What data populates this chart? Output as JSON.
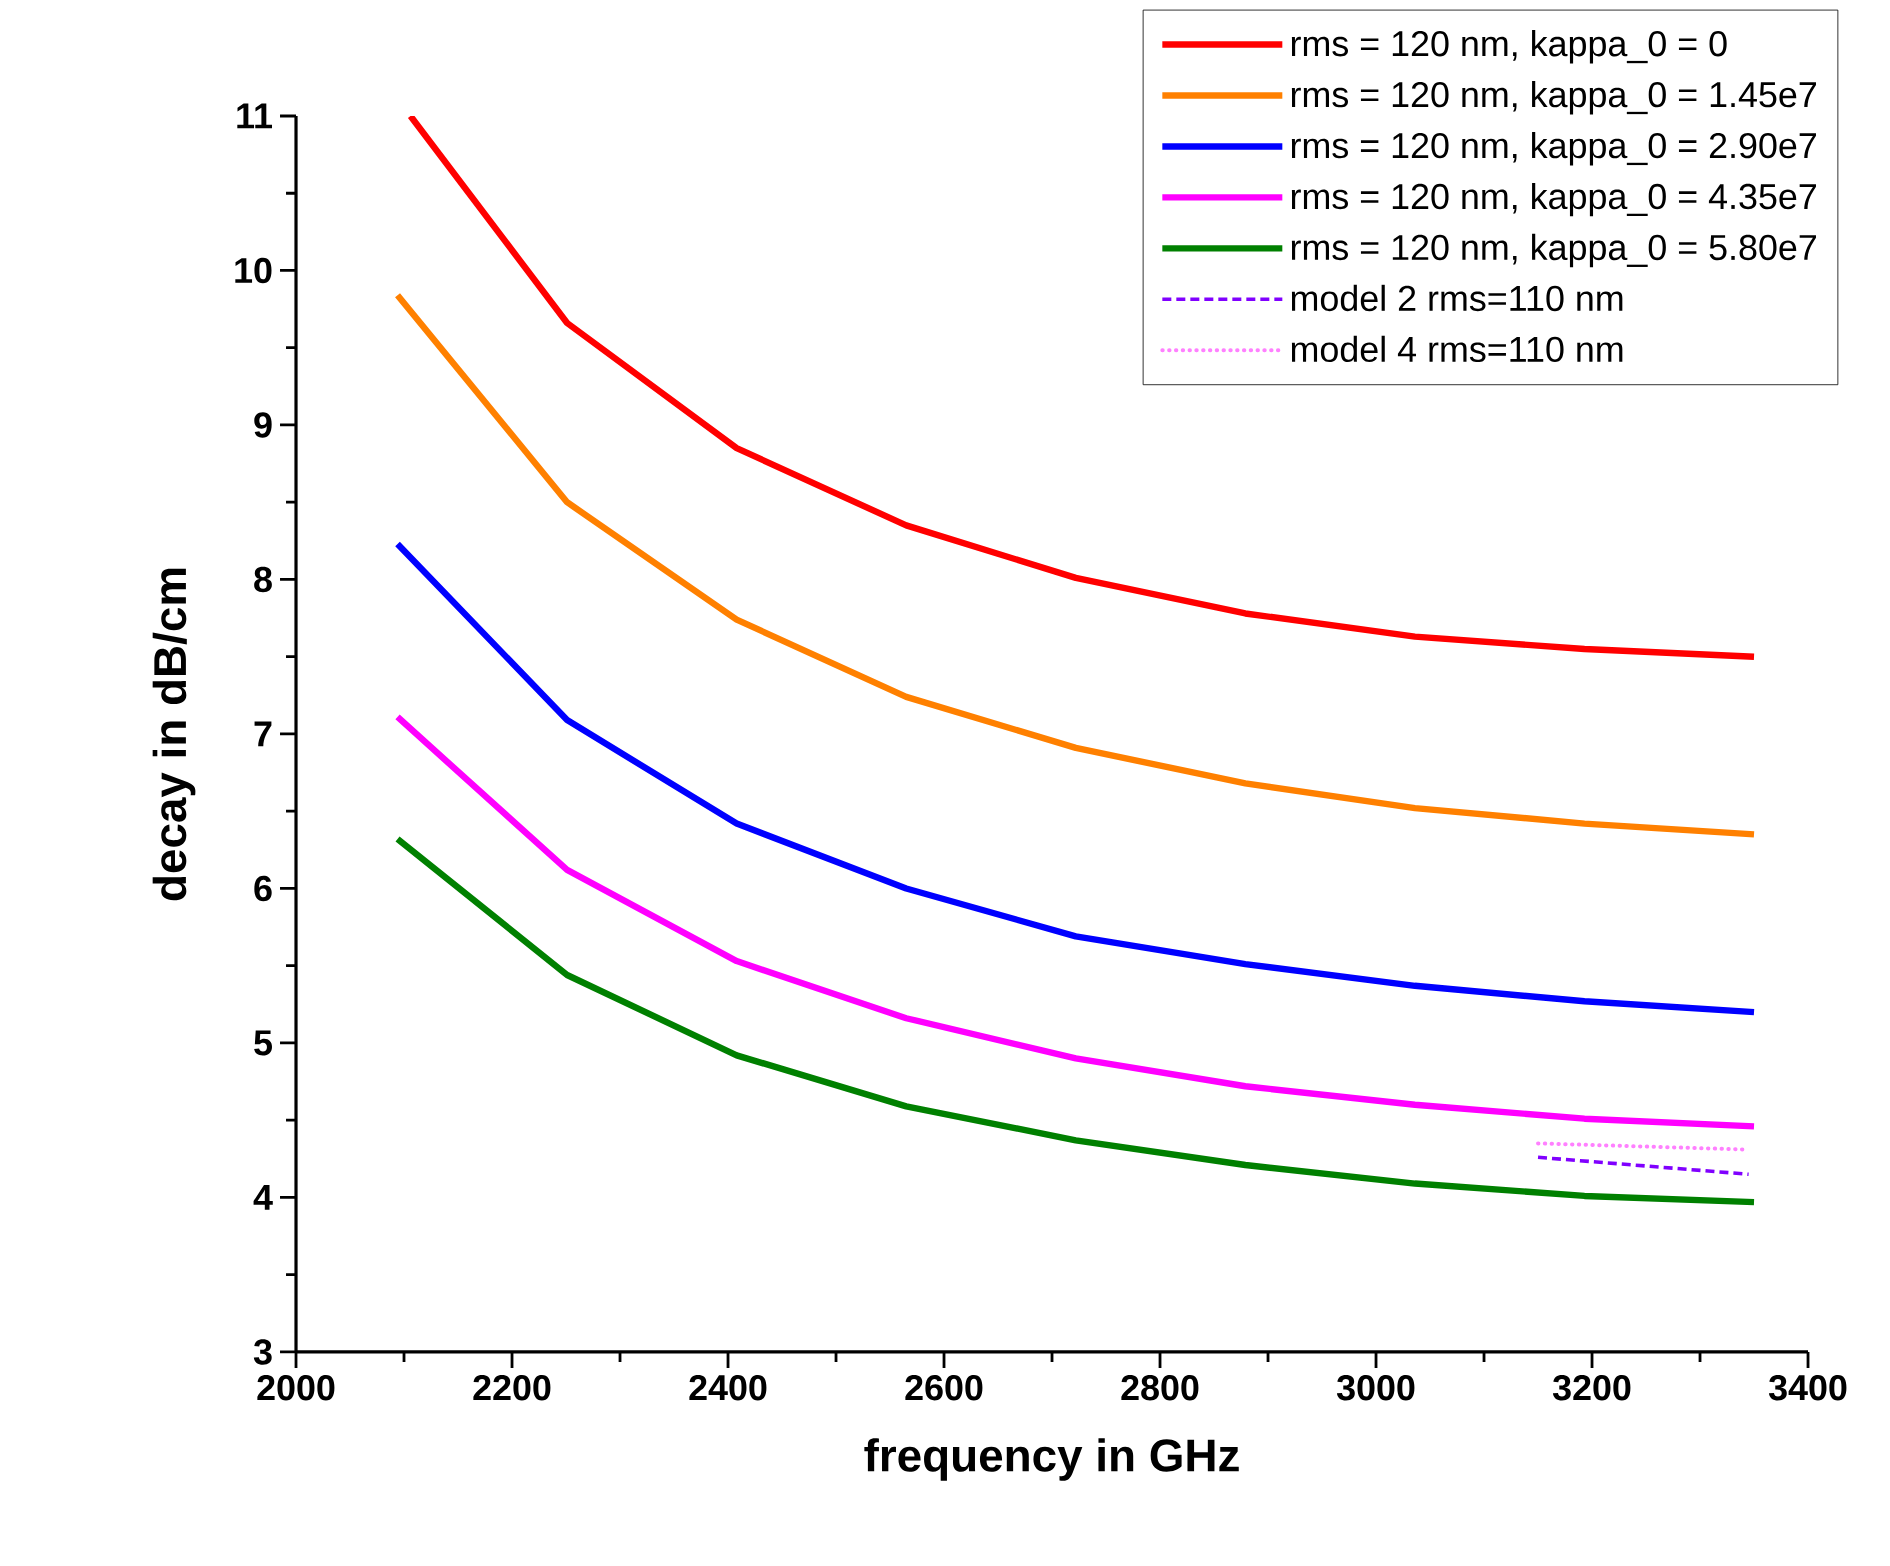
{
  "chart_data": {
    "type": "line",
    "xlabel": "frequency in GHz",
    "ylabel": "decay in dB/cm",
    "xlim": [
      2000,
      3400
    ],
    "xticks": [
      2000,
      2200,
      2400,
      2600,
      2800,
      3000,
      3200,
      3400
    ],
    "ylim": [
      3,
      11
    ],
    "yticks": [
      3,
      4,
      5,
      6,
      7,
      8,
      9,
      10,
      11
    ],
    "x": [
      2094,
      2251,
      2408,
      2565,
      2722,
      2879,
      3036,
      3193,
      3350
    ],
    "grid": false,
    "legend": "top right",
    "marker": "none",
    "series": [
      {
        "name": "rms = 120 nm, kappa_0 = 0",
        "color": "#ff0000",
        "line_style": "solid",
        "x": [
          2106,
          2251,
          2408,
          2565,
          2722,
          2879,
          3036,
          3193,
          3350
        ],
        "values": [
          11,
          9.66,
          8.85,
          8.35,
          8.01,
          7.78,
          7.63,
          7.55,
          7.5
        ]
      },
      {
        "name": "rms = 120 nm, kappa_0 = 1.45e7",
        "color": "#ff8000",
        "line_style": "solid",
        "values": [
          9.84,
          8.5,
          7.74,
          7.24,
          6.91,
          6.68,
          6.52,
          6.42,
          6.35
        ]
      },
      {
        "name": "rms = 120 nm, kappa_0 = 2.90e7",
        "color": "#0000ff",
        "line_style": "solid",
        "values": [
          8.23,
          7.09,
          6.42,
          6.0,
          5.69,
          5.51,
          5.37,
          5.27,
          5.2
        ]
      },
      {
        "name": "rms = 120 nm, kappa_0 = 4.35e7",
        "color": "#ff00ff",
        "line_style": "solid",
        "values": [
          7.11,
          6.12,
          5.53,
          5.16,
          4.9,
          4.72,
          4.6,
          4.51,
          4.46
        ]
      },
      {
        "name": "rms = 120 nm, kappa_0 = 5.80e7",
        "color": "#008000",
        "line_style": "solid",
        "values": [
          6.32,
          5.44,
          4.92,
          4.59,
          4.37,
          4.21,
          4.09,
          4.01,
          3.97
        ]
      },
      {
        "name": "model 2 rms=110 nm",
        "color": "#8000ff",
        "line_style": "dashed",
        "x": [
          3150,
          3345
        ],
        "values": [
          4.26,
          4.15
        ]
      },
      {
        "name": "model 4 rms=110 nm",
        "color": "#ff80ff",
        "line_style": "dotted",
        "x": [
          3150,
          3345
        ],
        "values": [
          4.35,
          4.31
        ]
      }
    ]
  }
}
